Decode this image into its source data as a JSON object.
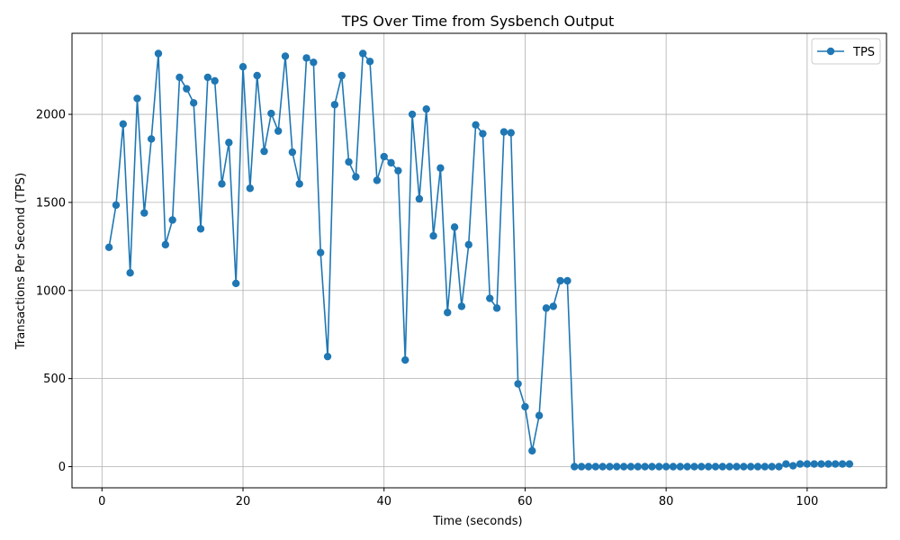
{
  "chart_data": {
    "type": "line",
    "title": "TPS Over Time from Sysbench Output",
    "xlabel": "Time (seconds)",
    "ylabel": "Transactions Per Second (TPS)",
    "xlim": [
      -4.25,
      111.25
    ],
    "ylim": [
      -120,
      2460
    ],
    "xticks": [
      0,
      20,
      40,
      60,
      80,
      100
    ],
    "yticks": [
      0,
      500,
      1000,
      1500,
      2000
    ],
    "grid": true,
    "legend_position": "top-right",
    "series": [
      {
        "name": "TPS",
        "color": "#1f77b4",
        "marker": "circle",
        "x": [
          1,
          2,
          3,
          4,
          5,
          6,
          7,
          8,
          9,
          10,
          11,
          12,
          13,
          14,
          15,
          16,
          17,
          18,
          19,
          20,
          21,
          22,
          23,
          24,
          25,
          26,
          27,
          28,
          29,
          30,
          31,
          32,
          33,
          34,
          35,
          36,
          37,
          38,
          39,
          40,
          41,
          42,
          43,
          44,
          45,
          46,
          47,
          48,
          49,
          50,
          51,
          52,
          53,
          54,
          55,
          56,
          57,
          58,
          59,
          60,
          61,
          62,
          63,
          64,
          65,
          66,
          67,
          68,
          69,
          70,
          71,
          72,
          73,
          74,
          75,
          76,
          77,
          78,
          79,
          80,
          81,
          82,
          83,
          84,
          85,
          86,
          87,
          88,
          89,
          90,
          91,
          92,
          93,
          94,
          95,
          96,
          97,
          98,
          99,
          100,
          101,
          102,
          103,
          104,
          105,
          106
        ],
        "y": [
          1245,
          1485,
          1945,
          1100,
          2090,
          1440,
          1860,
          2345,
          1260,
          1400,
          2210,
          2145,
          2065,
          1350,
          2210,
          2190,
          1605,
          1840,
          1040,
          2270,
          1580,
          2220,
          1790,
          2005,
          1905,
          2330,
          1785,
          1605,
          2320,
          2295,
          1215,
          625,
          2055,
          2220,
          1730,
          1645,
          2345,
          2300,
          1625,
          1760,
          1725,
          1680,
          605,
          2000,
          1520,
          2030,
          1310,
          1695,
          875,
          1360,
          910,
          1260,
          1940,
          1890,
          955,
          900,
          1900,
          1895,
          470,
          340,
          90,
          290,
          900,
          910,
          1055,
          1055,
          0,
          0,
          0,
          0,
          0,
          0,
          0,
          0,
          0,
          0,
          0,
          0,
          0,
          0,
          0,
          0,
          0,
          0,
          0,
          0,
          0,
          0,
          0,
          0,
          0,
          0,
          0,
          0,
          0,
          0,
          15,
          5,
          15,
          15,
          15,
          15,
          15,
          15,
          15,
          15
        ]
      }
    ]
  }
}
